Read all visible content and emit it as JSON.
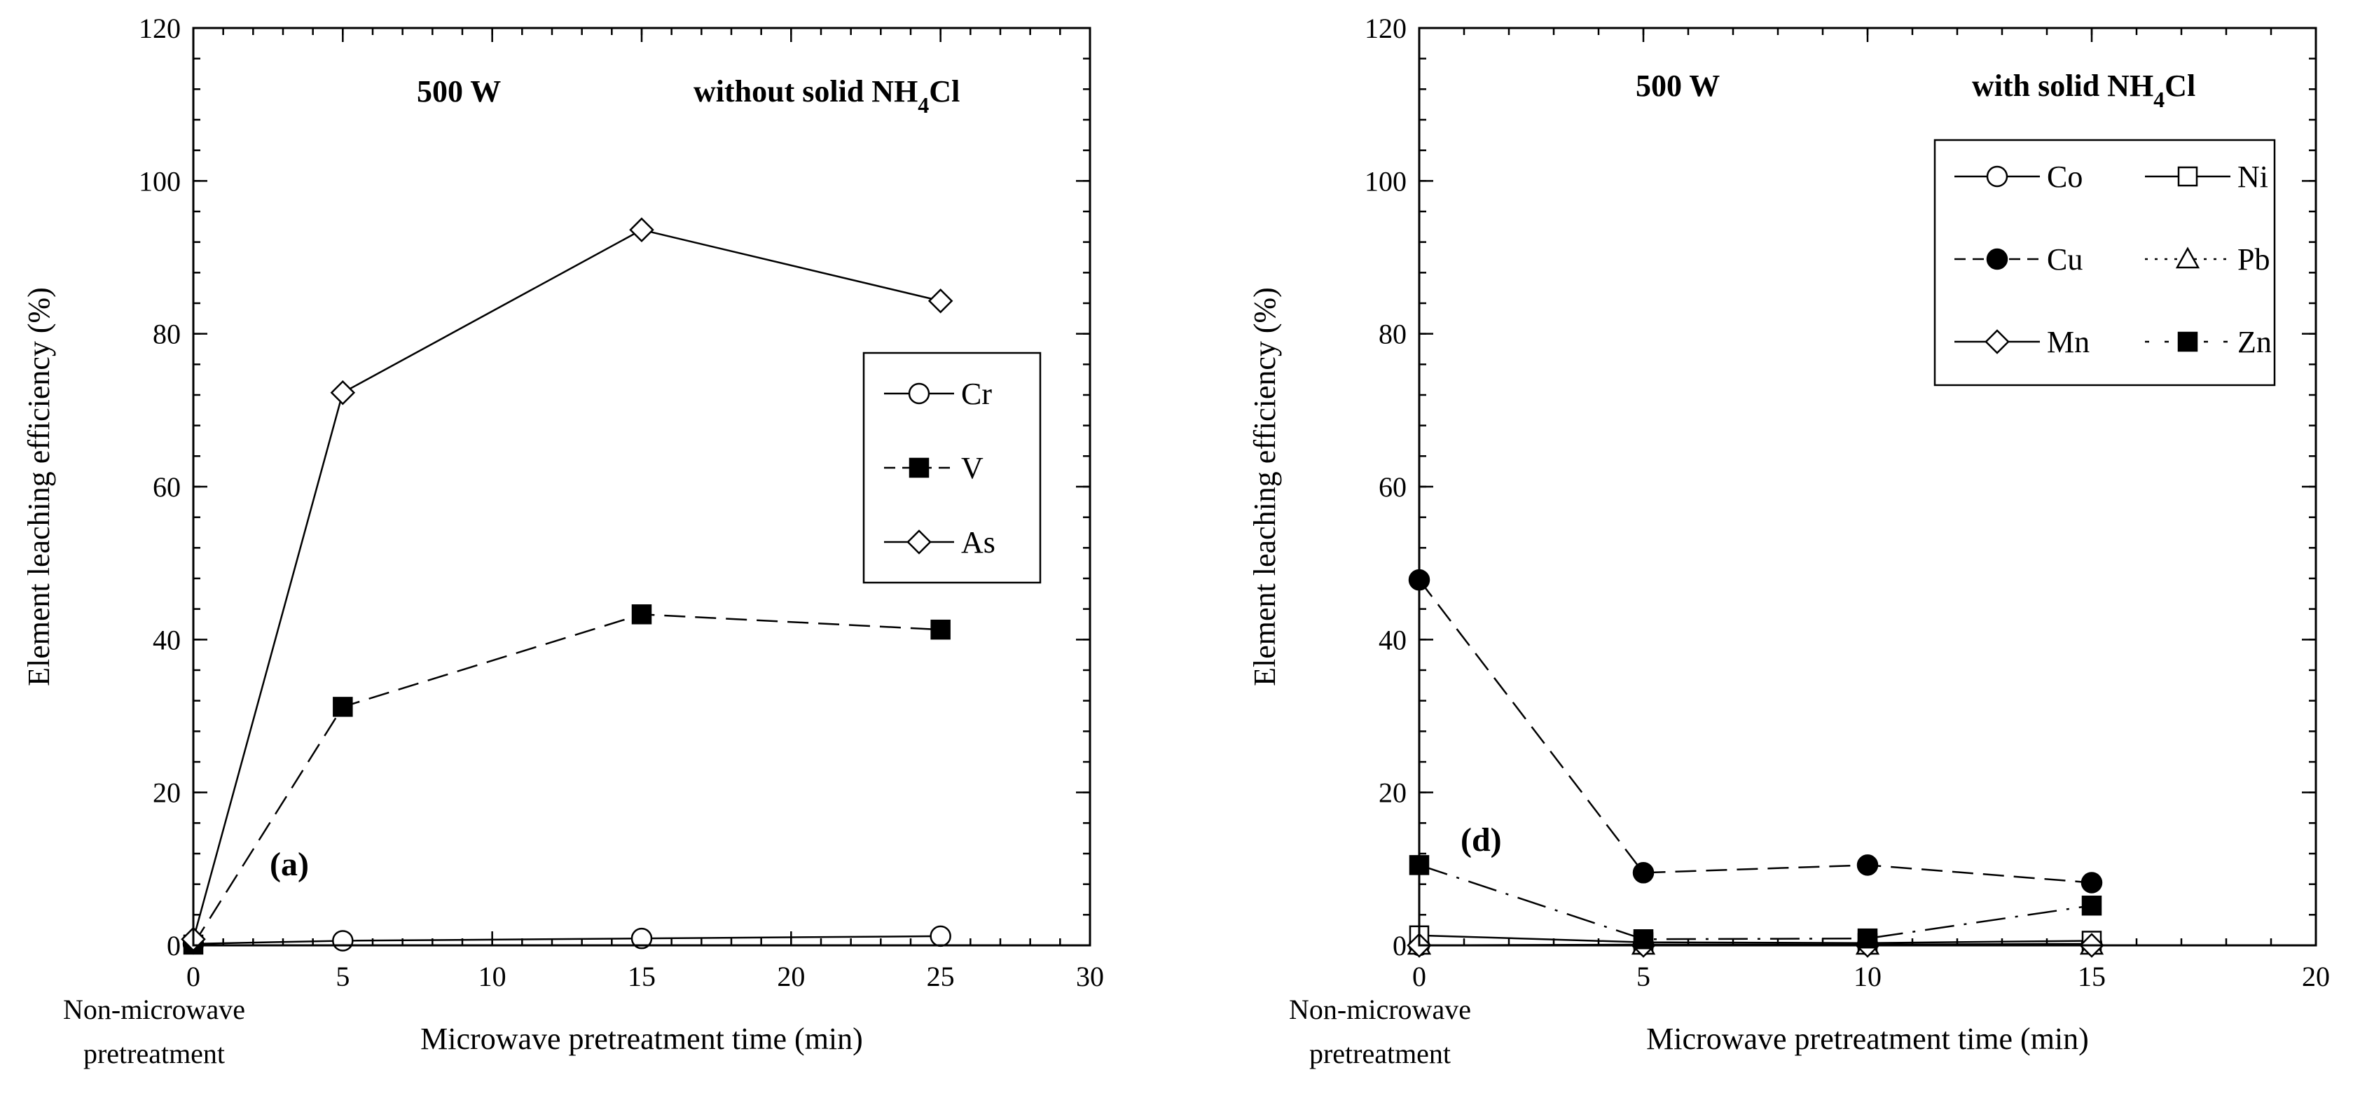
{
  "chart_data": [
    {
      "panel": "(a)",
      "type": "line",
      "annotation_power": "500 W",
      "annotation_condition_prefix": "without solid NH",
      "annotation_condition_sub1": "4",
      "annotation_condition_suffix": "Cl",
      "xlabel": "Microwave pretreatment time (min)",
      "ylabel": "Element leaching efficiency (%)",
      "x_extra_label_line1": "Non-microwave",
      "x_extra_label_line2": "pretreatment",
      "xlim": [
        0,
        30
      ],
      "ylim": [
        0,
        120
      ],
      "xticks": [
        0,
        5,
        10,
        15,
        20,
        25,
        30
      ],
      "yticks": [
        0,
        20,
        40,
        60,
        80,
        100,
        120
      ],
      "legend_position": "right-middle",
      "legend_order": [
        "Cr",
        "V",
        "As"
      ],
      "series": [
        {
          "name": "Cr",
          "marker": "circle-open",
          "dash": "solid",
          "x": [
            0,
            5,
            15,
            25
          ],
          "values": [
            0.2,
            0.6,
            0.9,
            1.2
          ]
        },
        {
          "name": "V",
          "marker": "square-filled",
          "dash": "long",
          "x": [
            0,
            5,
            15,
            25
          ],
          "values": [
            0.1,
            31.2,
            43.3,
            41.3
          ]
        },
        {
          "name": "As",
          "marker": "diamond-open",
          "dash": "solid",
          "x": [
            0,
            5,
            15,
            25
          ],
          "values": [
            0.8,
            72.3,
            93.6,
            84.3
          ]
        }
      ]
    },
    {
      "panel": "(d)",
      "type": "line",
      "annotation_power": "500 W",
      "annotation_condition_prefix": "with solid NH",
      "annotation_condition_sub1": "4",
      "annotation_condition_suffix": "Cl",
      "xlabel": "Microwave pretreatment time (min)",
      "ylabel": "Element leaching efficiency (%)",
      "x_extra_label_line1": "Non-microwave",
      "x_extra_label_line2": "pretreatment",
      "xlim": [
        0,
        20
      ],
      "ylim": [
        0,
        120
      ],
      "xticks": [
        0,
        5,
        10,
        15,
        20
      ],
      "yticks": [
        0,
        20,
        40,
        60,
        80,
        100,
        120
      ],
      "legend_position": "top-right",
      "legend_order": [
        "Co",
        "Ni",
        "Cu",
        "Pb",
        "Mn",
        "Zn"
      ],
      "series": [
        {
          "name": "Co",
          "marker": "circle-open",
          "dash": "solid",
          "x": [
            0,
            5,
            10,
            15
          ],
          "values": [
            0.0,
            0.1,
            0.1,
            0.2
          ]
        },
        {
          "name": "Ni",
          "marker": "square-open",
          "dash": "solid",
          "x": [
            0,
            5,
            10,
            15
          ],
          "values": [
            1.3,
            0.4,
            0.3,
            0.6
          ]
        },
        {
          "name": "Cu",
          "marker": "circle-filled",
          "dash": "long",
          "x": [
            0,
            5,
            10,
            15
          ],
          "values": [
            47.8,
            9.5,
            10.5,
            8.2
          ]
        },
        {
          "name": "Pb",
          "marker": "triangle-open",
          "dash": "dot",
          "x": [
            0,
            5,
            10,
            15
          ],
          "values": [
            0.0,
            0.0,
            0.0,
            0.0
          ]
        },
        {
          "name": "Mn",
          "marker": "diamond-open",
          "dash": "solid",
          "x": [
            0,
            5,
            10,
            15
          ],
          "values": [
            0.0,
            0.0,
            0.0,
            0.0
          ]
        },
        {
          "name": "Zn",
          "marker": "square-filled",
          "dash": "dashdot",
          "x": [
            0,
            5,
            10,
            15
          ],
          "values": [
            10.5,
            0.8,
            0.9,
            5.2
          ]
        }
      ]
    }
  ]
}
